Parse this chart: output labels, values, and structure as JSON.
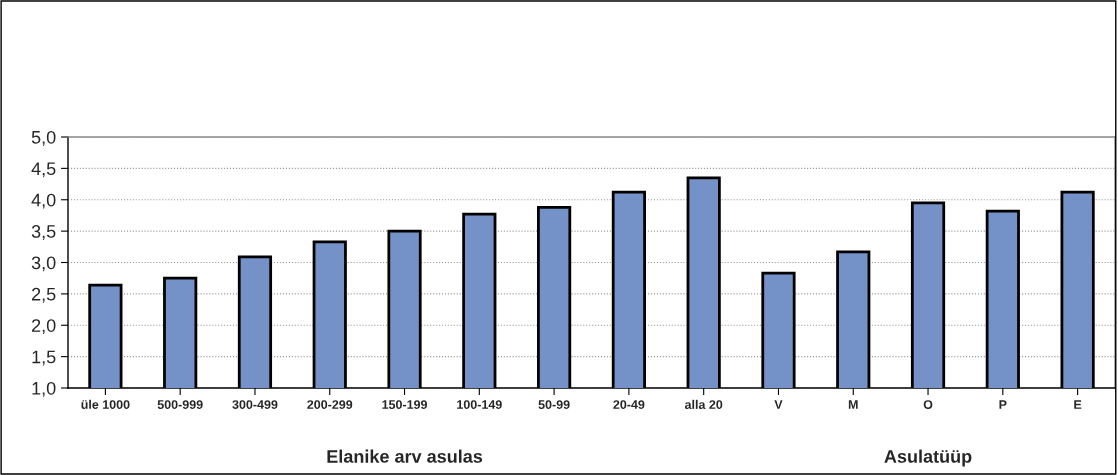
{
  "chart_data": {
    "type": "bar",
    "categories": [
      "üle 1000",
      "500-999",
      "300-499",
      "200-299",
      "150-199",
      "100-149",
      "50-99",
      "20-49",
      "alla 20",
      "V",
      "M",
      "O",
      "P",
      "E"
    ],
    "values": [
      2.64,
      2.75,
      3.09,
      3.33,
      3.5,
      3.77,
      3.88,
      4.12,
      4.35,
      2.83,
      3.17,
      3.95,
      3.82,
      4.12
    ],
    "color": "#7592c8",
    "ylim": [
      1.0,
      5.0
    ],
    "yticks": [
      {
        "value": 1.0,
        "label": "1,0"
      },
      {
        "value": 1.5,
        "label": "1,5"
      },
      {
        "value": 2.0,
        "label": "2,0"
      },
      {
        "value": 2.5,
        "label": "2,5"
      },
      {
        "value": 3.0,
        "label": "3,0"
      },
      {
        "value": 3.5,
        "label": "3,5"
      },
      {
        "value": 4.0,
        "label": "4,0"
      },
      {
        "value": 4.5,
        "label": "4,5"
      },
      {
        "value": 5.0,
        "label": "5,0"
      }
    ],
    "grid": "y",
    "annotations": [
      "Elanike arv asulas",
      "Asulatüüp"
    ]
  }
}
